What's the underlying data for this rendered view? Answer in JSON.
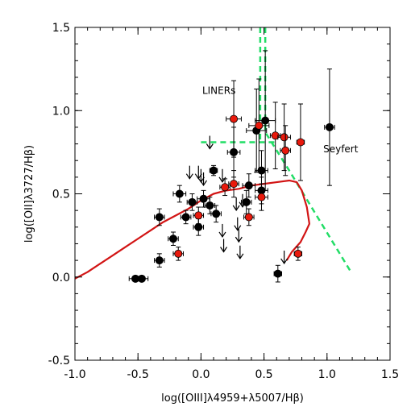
{
  "chart_data": {
    "type": "scatter",
    "xlabel": "log([OIII]λ4959+λ5007/Hβ)",
    "ylabel": "log([OII]λ3727/Hβ)",
    "xlim": [
      -1.0,
      1.5
    ],
    "ylim": [
      -0.5,
      1.5
    ],
    "xticks": [
      "-1.0",
      "-0.5",
      "0.0",
      "0.5",
      "1.0",
      "1.5"
    ],
    "yticks": [
      "-0.5",
      "0.0",
      "0.5",
      "1.0",
      "1.5"
    ],
    "grid": false,
    "annotations": [
      {
        "text": "LINERs",
        "x": 0.01,
        "y": 1.1
      },
      {
        "text": "Seyfert",
        "x": 0.97,
        "y": 0.75
      }
    ],
    "colors": {
      "black_points": "#000000",
      "red_points": "#e8190c",
      "model_curve": "#d21414",
      "dividing_lines": "#22dd66"
    },
    "series": [
      {
        "marker": "black-circle",
        "points": [
          {
            "x": -0.52,
            "y": -0.01,
            "xerr": 0.05
          },
          {
            "x": -0.47,
            "y": -0.01,
            "xerr": 0.05
          },
          {
            "x": -0.33,
            "y": 0.1,
            "xerr": 0.04,
            "yerr": 0.04
          },
          {
            "x": -0.33,
            "y": 0.36,
            "xerr": 0.04,
            "yerr": 0.05
          },
          {
            "x": -0.22,
            "y": 0.23,
            "xerr": 0.04,
            "yerr": 0.04
          },
          {
            "x": -0.17,
            "y": 0.5,
            "xerr": 0.05,
            "yerr": 0.05
          },
          {
            "x": -0.12,
            "y": 0.36,
            "xerr": 0.04,
            "yerr": 0.04
          },
          {
            "x": -0.07,
            "y": 0.45,
            "xerr": 0.04,
            "yerr": 0.05
          },
          {
            "x": -0.02,
            "y": 0.3,
            "xerr": 0.04,
            "yerr": 0.05
          },
          {
            "x": 0.02,
            "y": 0.47,
            "xerr": 0.05,
            "yerr": 0.05
          },
          {
            "x": 0.07,
            "y": 0.43,
            "xerr": 0.04,
            "yerr": 0.05
          },
          {
            "x": 0.1,
            "y": 0.64,
            "xerr": 0.03,
            "yerr": 0.03
          },
          {
            "x": 0.12,
            "y": 0.38,
            "xerr": 0.04,
            "yerr": 0.05
          },
          {
            "x": 0.26,
            "y": 0.75,
            "xerr": 0.05,
            "yerr": 0.15
          },
          {
            "x": 0.36,
            "y": 0.45,
            "xerr": 0.04,
            "yerr": 0.07
          },
          {
            "x": 0.38,
            "y": 0.55,
            "xerr": 0.05,
            "yerr": 0.07
          },
          {
            "x": 0.44,
            "y": 0.88,
            "xerr": 0.08,
            "yerr": 0.25
          },
          {
            "x": 0.48,
            "y": 0.64,
            "xerr": 0.05,
            "yerr": 0.12
          },
          {
            "x": 0.48,
            "y": 0.52,
            "xerr": 0.05,
            "yerr": 0.08
          },
          {
            "x": 0.51,
            "y": 0.94,
            "xerr": 0.08,
            "yerr": 0.42
          },
          {
            "x": 0.61,
            "y": 0.02,
            "xerr": 0.03,
            "yerr": 0.05
          },
          {
            "x": 1.02,
            "y": 0.9,
            "xerr": 0.04,
            "yerr": 0.35
          }
        ]
      },
      {
        "marker": "red-circle",
        "points": [
          {
            "x": -0.18,
            "y": 0.14,
            "xerr": 0.04,
            "yerr": 0.04
          },
          {
            "x": -0.02,
            "y": 0.37,
            "xerr": 0.04,
            "yerr": 0.05
          },
          {
            "x": 0.19,
            "y": 0.54,
            "xerr": 0.04,
            "yerr": 0.05
          },
          {
            "x": 0.26,
            "y": 0.95,
            "xerr": 0.06,
            "yerr": 0.23
          },
          {
            "x": 0.26,
            "y": 0.56,
            "xerr": 0.04,
            "yerr": 0.08
          },
          {
            "x": 0.38,
            "y": 0.36,
            "xerr": 0.04,
            "yerr": 0.05
          },
          {
            "x": 0.46,
            "y": 0.91,
            "xerr": 0.08,
            "yerr": 0.28
          },
          {
            "x": 0.48,
            "y": 0.48,
            "xerr": 0.05,
            "yerr": 0.08
          },
          {
            "x": 0.59,
            "y": 0.85,
            "xerr": 0.04,
            "yerr": 0.2
          },
          {
            "x": 0.66,
            "y": 0.84,
            "xerr": 0.05,
            "yerr": 0.2
          },
          {
            "x": 0.67,
            "y": 0.76,
            "xerr": 0.04,
            "yerr": 0.15
          },
          {
            "x": 0.77,
            "y": 0.14,
            "xerr": 0.03,
            "yerr": 0.04
          },
          {
            "x": 0.79,
            "y": 0.81,
            "xerr": 0.03,
            "yerr": 0.23
          }
        ]
      }
    ],
    "upper_limits": [
      {
        "x": 0.07,
        "y": 0.81
      },
      {
        "x": -0.09,
        "y": 0.63
      },
      {
        "x": -0.02,
        "y": 0.63
      },
      {
        "x": 0.0,
        "y": 0.61
      },
      {
        "x": 0.02,
        "y": 0.59
      },
      {
        "x": 0.17,
        "y": 0.61
      },
      {
        "x": 0.28,
        "y": 0.44
      },
      {
        "x": 0.33,
        "y": 0.46
      },
      {
        "x": 0.29,
        "y": 0.32
      },
      {
        "x": 0.17,
        "y": 0.28
      },
      {
        "x": 0.3,
        "y": 0.25
      },
      {
        "x": 0.18,
        "y": 0.19
      },
      {
        "x": 0.31,
        "y": 0.15
      },
      {
        "x": 0.66,
        "y": 0.12
      }
    ],
    "model_curve": [
      {
        "x": -1.0,
        "y": -0.01
      },
      {
        "x": -0.9,
        "y": 0.03
      },
      {
        "x": -0.8,
        "y": 0.08
      },
      {
        "x": -0.7,
        "y": 0.13
      },
      {
        "x": -0.6,
        "y": 0.18
      },
      {
        "x": -0.5,
        "y": 0.23
      },
      {
        "x": -0.4,
        "y": 0.28
      },
      {
        "x": -0.3,
        "y": 0.33
      },
      {
        "x": -0.2,
        "y": 0.37
      },
      {
        "x": -0.1,
        "y": 0.41
      },
      {
        "x": 0.0,
        "y": 0.46
      },
      {
        "x": 0.1,
        "y": 0.5
      },
      {
        "x": 0.2,
        "y": 0.52
      },
      {
        "x": 0.3,
        "y": 0.53
      },
      {
        "x": 0.4,
        "y": 0.55
      },
      {
        "x": 0.5,
        "y": 0.56
      },
      {
        "x": 0.6,
        "y": 0.57
      },
      {
        "x": 0.7,
        "y": 0.58
      },
      {
        "x": 0.76,
        "y": 0.57
      },
      {
        "x": 0.8,
        "y": 0.52
      },
      {
        "x": 0.84,
        "y": 0.42
      },
      {
        "x": 0.86,
        "y": 0.32
      },
      {
        "x": 0.83,
        "y": 0.27
      },
      {
        "x": 0.79,
        "y": 0.21
      },
      {
        "x": 0.72,
        "y": 0.15
      },
      {
        "x": 0.68,
        "y": 0.1
      }
    ],
    "dividing_lines": [
      {
        "name": "vertical",
        "points": [
          {
            "x": 0.47,
            "y": 1.5
          },
          {
            "x": 0.47,
            "y": 0.81
          }
        ]
      },
      {
        "name": "horizontal",
        "points": [
          {
            "x": 0.0,
            "y": 0.81
          },
          {
            "x": 0.59,
            "y": 0.81
          }
        ]
      },
      {
        "name": "diagonal",
        "points": [
          {
            "x": 0.51,
            "y": 1.5
          },
          {
            "x": 0.51,
            "y": 0.87
          },
          {
            "x": 0.7,
            "y": 0.64
          },
          {
            "x": 1.19,
            "y": 0.03
          }
        ]
      }
    ]
  }
}
